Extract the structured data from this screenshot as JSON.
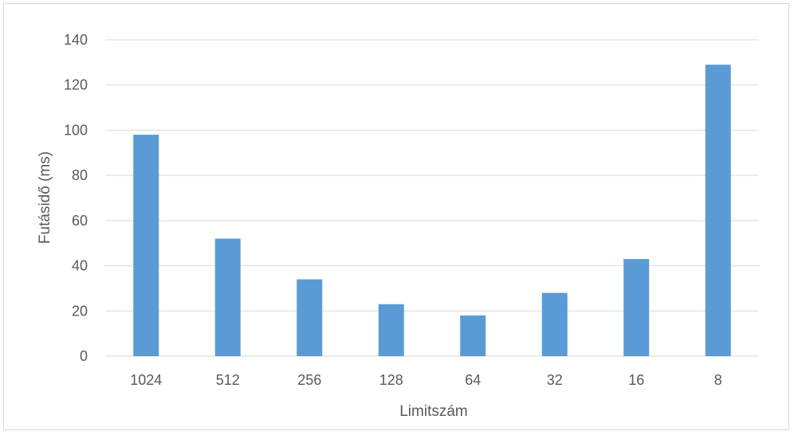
{
  "chart_data": {
    "type": "bar",
    "title": "",
    "xlabel": "Limitszám",
    "ylabel": "Futásidő (ms)",
    "categories": [
      "1024",
      "512",
      "256",
      "128",
      "64",
      "32",
      "16",
      "8"
    ],
    "values": [
      98,
      52,
      34,
      23,
      18,
      28,
      43,
      129
    ],
    "ylim": [
      0,
      140
    ],
    "yticks": [
      0,
      20,
      40,
      60,
      80,
      100,
      120,
      140
    ],
    "grid": true,
    "legend": "none",
    "bar_color": "#5b9bd5",
    "grid_color": "#d9d9d9",
    "text_color": "#595959"
  }
}
